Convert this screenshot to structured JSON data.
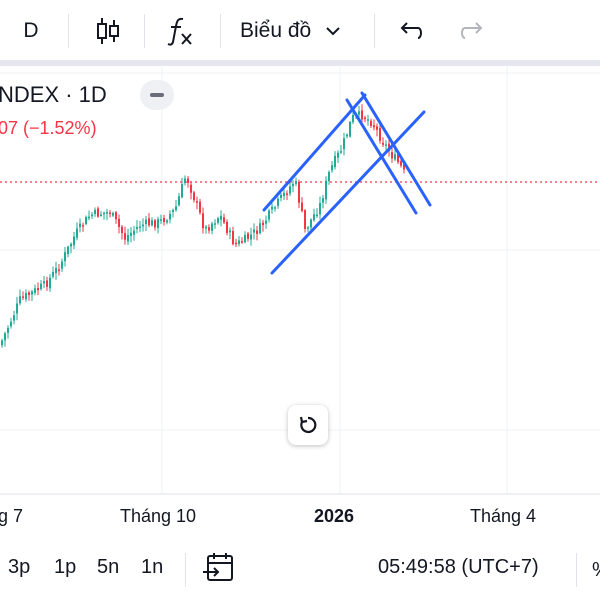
{
  "toolbar": {
    "interval": "D",
    "chart_type_menu": "Biểu đồ"
  },
  "legend": {
    "symbol_interval": "NDEX · 1D",
    "change": "07 (−1.52%)"
  },
  "x_axis": {
    "labels": [
      "g 7",
      "Tháng 10",
      "2026",
      "Tháng 4"
    ]
  },
  "bottom_bar": {
    "ranges": [
      "3p",
      "1p",
      "5n",
      "1n"
    ],
    "time": "05:49:58 (UTC+7)"
  },
  "colors": {
    "up": "#22ab94",
    "down": "#f23645",
    "trendline": "#2962ff",
    "price_line": "#f23645"
  },
  "icons": {
    "indicators": "function-fx-icon",
    "candles": "candlestick-icon",
    "undo": "undo-icon",
    "redo": "redo-icon",
    "reset": "reset-chart-icon",
    "date_range": "date-range-icon"
  }
}
